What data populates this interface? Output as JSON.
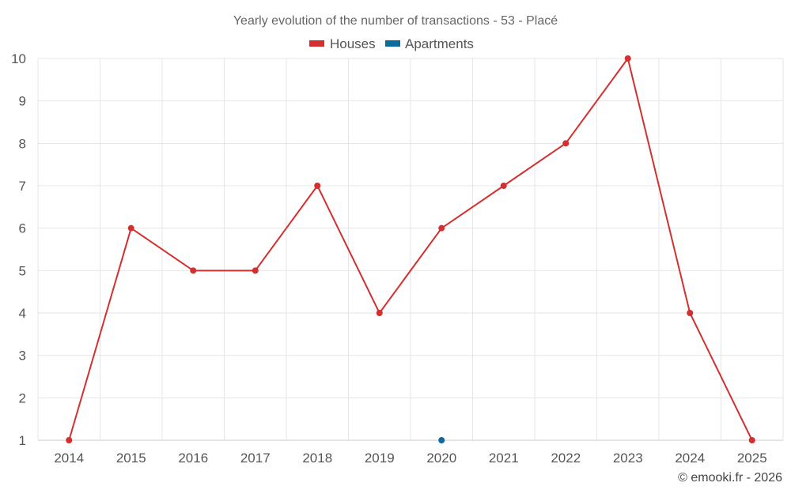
{
  "chart_data": {
    "type": "line",
    "title": "Yearly evolution of the number of transactions - 53 - Placé",
    "categories": [
      "2014",
      "2015",
      "2016",
      "2017",
      "2018",
      "2019",
      "2020",
      "2021",
      "2022",
      "2023",
      "2024",
      "2025"
    ],
    "series": [
      {
        "name": "Houses",
        "color": "#d32f2f",
        "values": [
          1,
          6,
          5,
          5,
          7,
          4,
          6,
          7,
          8,
          10,
          4,
          1
        ]
      },
      {
        "name": "Apartments",
        "color": "#0b6a9e",
        "values": [
          null,
          null,
          null,
          null,
          null,
          null,
          1,
          null,
          null,
          null,
          null,
          null
        ]
      }
    ],
    "ylim": [
      1,
      10
    ],
    "yticks": [
      "1",
      "2",
      "3",
      "4",
      "5",
      "6",
      "7",
      "8",
      "9",
      "10"
    ],
    "xlabel": "",
    "ylabel": "",
    "grid": true,
    "legend_position": "top-center"
  },
  "credit": "© emooki.fr - 2026"
}
